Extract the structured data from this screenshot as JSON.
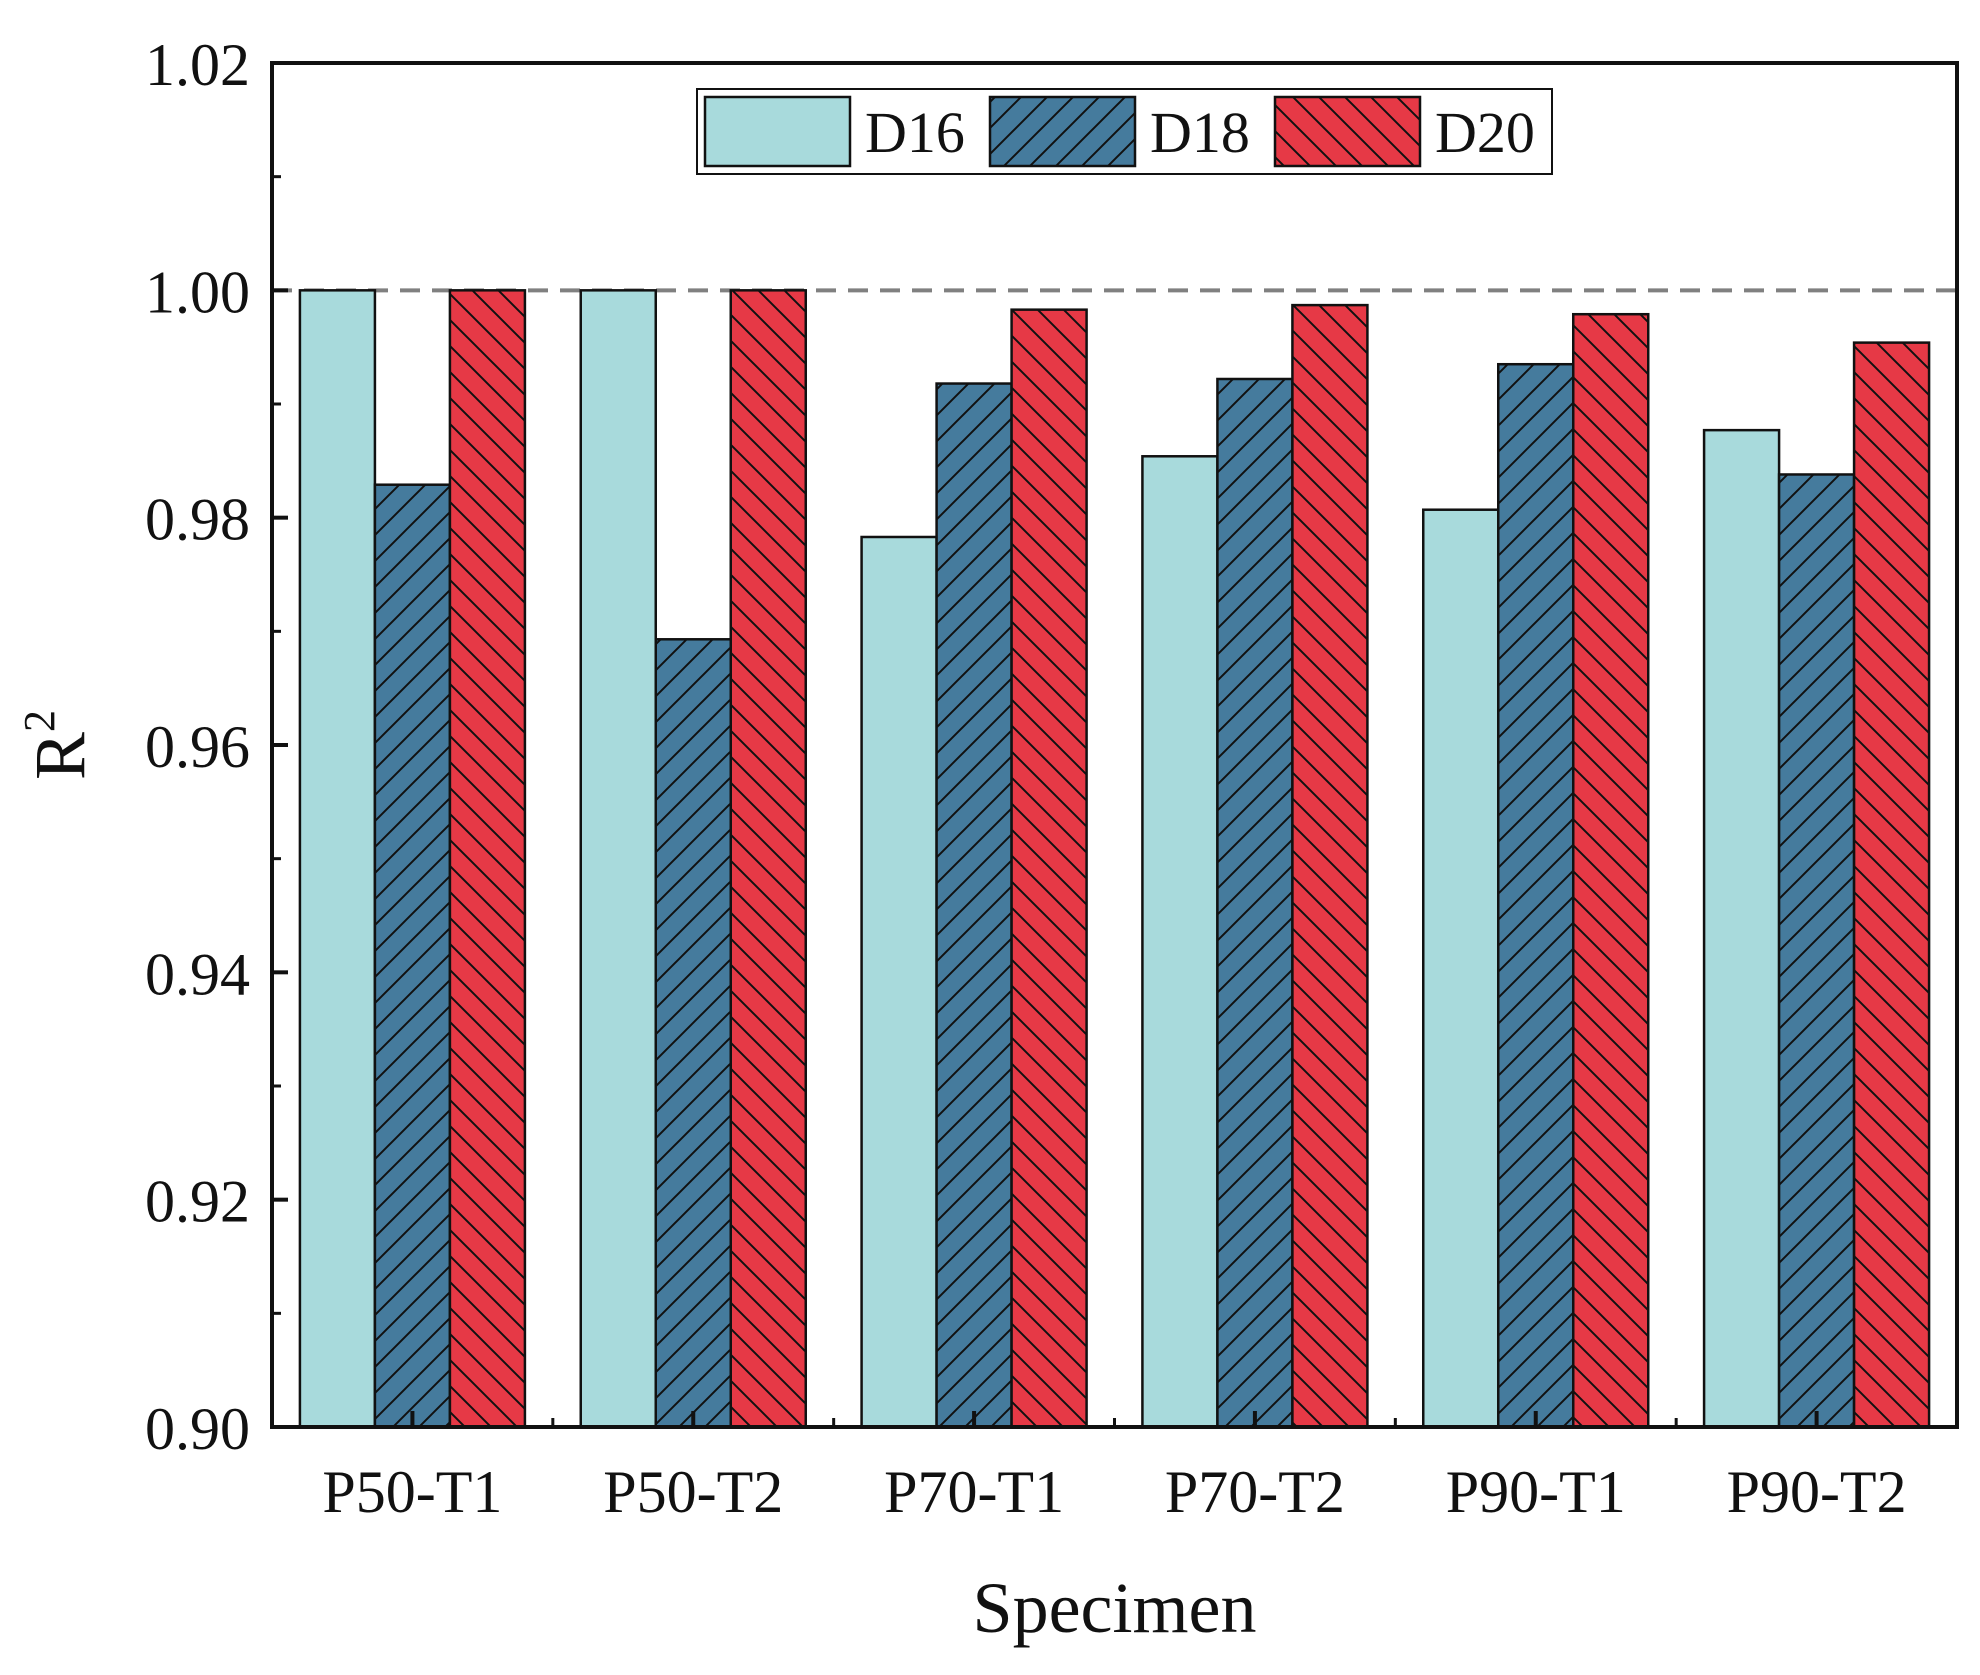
{
  "chart_data": {
    "type": "bar",
    "title": "",
    "xlabel": "Specimen",
    "ylabel": "R",
    "ylabel_superscript": "2",
    "categories": [
      "P50-T1",
      "P50-T2",
      "P70-T1",
      "P70-T2",
      "P90-T1",
      "P90-T2"
    ],
    "ylim": [
      0.9,
      1.02
    ],
    "yticks": [
      "0.90",
      "0.92",
      "0.94",
      "0.96",
      "0.98",
      "1.00",
      "1.02"
    ],
    "reference_line": {
      "y": 1.0,
      "style": "dashed",
      "color": "#808080"
    },
    "legend_position": "top-center",
    "series": [
      {
        "name": "D16",
        "color": "#a8dadc",
        "pattern": "none",
        "values": [
          1.0,
          1.0,
          0.9783,
          0.9854,
          0.9807,
          0.9877
        ]
      },
      {
        "name": "D18",
        "color": "#457b9d",
        "pattern": "forward-diagonal",
        "values": [
          0.9829,
          0.9693,
          0.9918,
          0.9922,
          0.9935,
          0.9838
        ]
      },
      {
        "name": "D20",
        "color": "#e63946",
        "pattern": "backward-diagonal",
        "values": [
          1.0,
          1.0,
          0.9983,
          0.9987,
          0.9979,
          0.9954
        ]
      }
    ]
  }
}
